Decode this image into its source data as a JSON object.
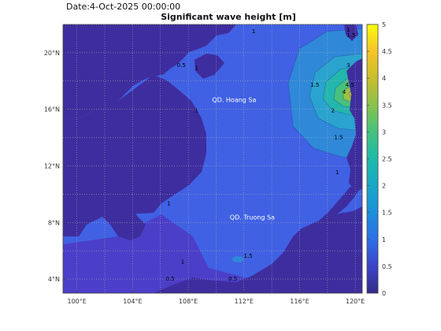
{
  "header": {
    "date_label": "Date:4-Oct-2025 00:00:00",
    "title": "Significant wave height [m]"
  },
  "map": {
    "lon_range": [
      99,
      120.5
    ],
    "lat_range": [
      3,
      22
    ],
    "x_ticks": [
      {
        "value": 100,
        "label": "100°E"
      },
      {
        "value": 104,
        "label": "104°E"
      },
      {
        "value": 108,
        "label": "108°E"
      },
      {
        "value": 112,
        "label": "112°E"
      },
      {
        "value": 116,
        "label": "116°E"
      },
      {
        "value": 120,
        "label": "120°E"
      }
    ],
    "y_ticks": [
      {
        "value": 4,
        "label": "4°N"
      },
      {
        "value": 8,
        "label": "8°N"
      },
      {
        "value": 12,
        "label": "12°N"
      },
      {
        "value": 16,
        "label": "16°N"
      },
      {
        "value": 20,
        "label": "20°N"
      }
    ],
    "grid": true,
    "place_labels": [
      {
        "text": "QD. Hoang Sa",
        "lon": 111.3,
        "lat": 16.5
      },
      {
        "text": "QD. Truong Sa",
        "lon": 112.6,
        "lat": 8.2
      }
    ],
    "contour_labels": [
      {
        "text": "1",
        "lon": 112.7,
        "lat": 21.4
      },
      {
        "text": "1",
        "lon": 119.5,
        "lat": 21.5
      },
      {
        "text": "1.5",
        "lon": 119.7,
        "lat": 21.1
      },
      {
        "text": "0.5",
        "lon": 107.5,
        "lat": 19.0
      },
      {
        "text": "1",
        "lon": 108.6,
        "lat": 18.8
      },
      {
        "text": "1.5",
        "lon": 117.1,
        "lat": 17.6
      },
      {
        "text": "2",
        "lon": 118.4,
        "lat": 15.8
      },
      {
        "text": "4",
        "lon": 119.2,
        "lat": 17.1
      },
      {
        "text": "4.5",
        "lon": 119.6,
        "lat": 17.6
      },
      {
        "text": "3",
        "lon": 119.5,
        "lat": 19.0
      },
      {
        "text": "1.5",
        "lon": 118.8,
        "lat": 13.9
      },
      {
        "text": "1",
        "lon": 118.7,
        "lat": 11.4
      },
      {
        "text": "1",
        "lon": 106.6,
        "lat": 9.2
      },
      {
        "text": "1",
        "lon": 107.6,
        "lat": 5.1
      },
      {
        "text": "0.5",
        "lon": 106.7,
        "lat": 3.9
      },
      {
        "text": "1.5",
        "lon": 112.3,
        "lat": 5.5
      },
      {
        "text": "0.5",
        "lon": 111.2,
        "lat": 3.9
      },
      {
        "text": "1",
        "lon": 108.6,
        "lat": 15.8
      }
    ],
    "colors": {
      "land": "#3e2d9e",
      "sea_base": "#4061e3",
      "shallow": "#4b3fc9",
      "swell_1_5": "#2f88d8",
      "swell_2": "#2aa3cf",
      "swell_2_5": "#23b6ad",
      "swell_3": "#47c17b",
      "swell_3_5": "#98c343",
      "swell_4": "#d6bb2f",
      "swell_4_5": "#f7d923"
    }
  },
  "colorbar": {
    "min": 0,
    "max": 5,
    "ticks": [
      "0",
      "0.5",
      "1",
      "1.5",
      "2",
      "2.5",
      "3",
      "3.5",
      "4",
      "4.5",
      "5"
    ],
    "stops": [
      "#352a87",
      "#3a44c8",
      "#2e6ee6",
      "#1b8fdb",
      "#19a8c6",
      "#1fbaa9",
      "#44c27d",
      "#8ac34c",
      "#c9bd2e",
      "#f4c527",
      "#f9fb0e"
    ]
  }
}
